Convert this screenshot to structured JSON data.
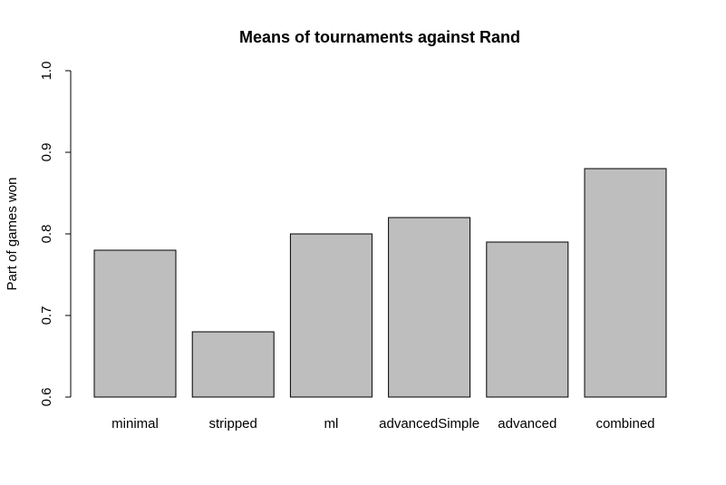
{
  "chart_data": {
    "type": "bar",
    "title": "Means of tournaments against Rand",
    "xlabel": "",
    "ylabel": "Part of games won",
    "categories": [
      "minimal",
      "stripped",
      "ml",
      "advancedSimple",
      "advanced",
      "combined"
    ],
    "values": [
      0.78,
      0.68,
      0.8,
      0.82,
      0.79,
      0.88
    ],
    "ylim": [
      0.6,
      1.0
    ],
    "yticks": [
      0.6,
      0.7,
      0.8,
      0.9,
      1.0
    ],
    "ytick_labels": [
      "0.6",
      "0.7",
      "0.8",
      "0.9",
      "1.0"
    ],
    "grid": false,
    "legend": "none",
    "bar_color": "#bebebe",
    "bar_edge_color": "#000000"
  }
}
